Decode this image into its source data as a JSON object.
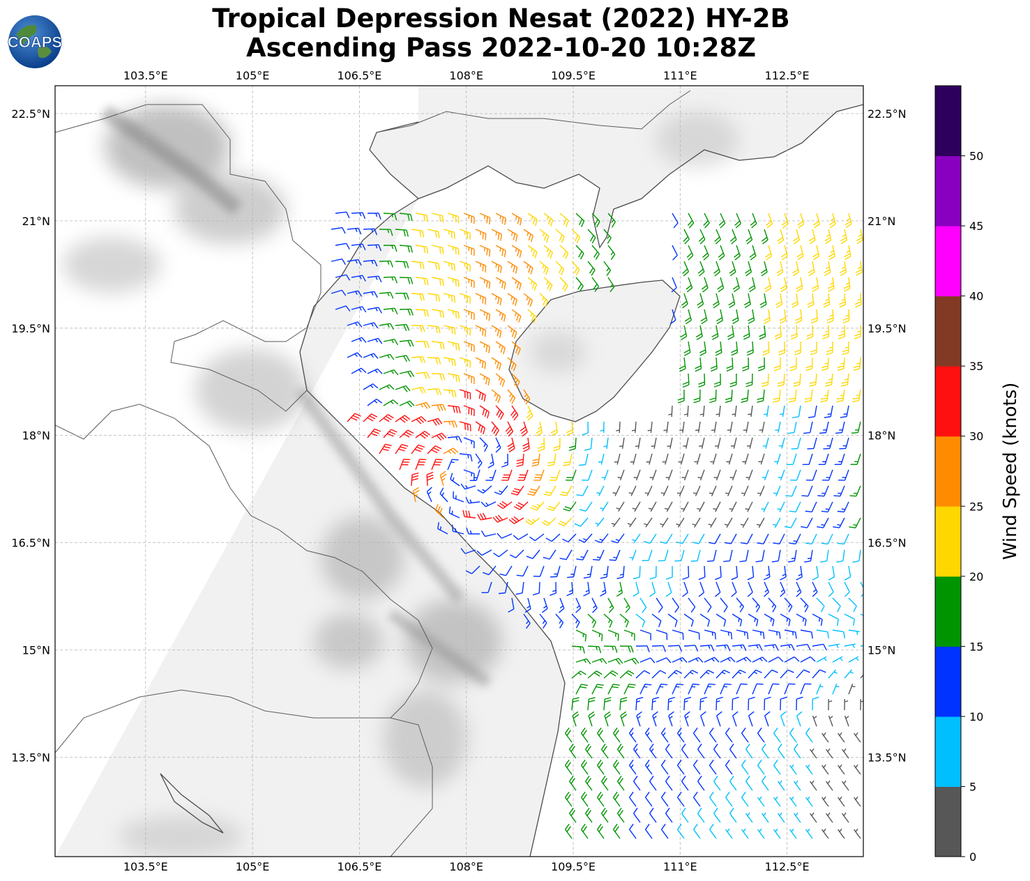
{
  "header": {
    "title_line1": "Tropical Depression Nesat (2022) HY-2B",
    "title_line2": "Ascending Pass 2022-10-20 10:28Z",
    "logo_text": "COAPS"
  },
  "map": {
    "lon_ticks": [
      "103.5°E",
      "105°E",
      "106.5°E",
      "108°E",
      "109.5°E",
      "111°E",
      "112.5°E"
    ],
    "lat_ticks": [
      "22.5°N",
      "21°N",
      "19.5°N",
      "18°N",
      "16.5°N",
      "15°N",
      "13.5°N"
    ],
    "lon_values": [
      103.5,
      105,
      106.5,
      108,
      109.5,
      111,
      112.5
    ],
    "lat_values": [
      22.5,
      21,
      19.5,
      18,
      16.5,
      15,
      13.5
    ],
    "lon_range": [
      102.23,
      113.57
    ],
    "lat_range": [
      12.11,
      22.89
    ]
  },
  "colorbar": {
    "label": "Wind Speed (knots)",
    "ticks": [
      "0",
      "5",
      "10",
      "15",
      "20",
      "25",
      "30",
      "35",
      "40",
      "45",
      "50"
    ],
    "colors": [
      "#575757",
      "#00bfff",
      "#0033ff",
      "#009500",
      "#ffd700",
      "#ff8c00",
      "#ff1010",
      "#833a24",
      "#ff00ff",
      "#8a00c0",
      "#2e005e"
    ]
  },
  "colors": {
    "coast": "#4a4a4a",
    "grid": "#b0b0b0",
    "land_light": "#f2f2f2",
    "terrain_dark": "#9a9a9a"
  }
}
